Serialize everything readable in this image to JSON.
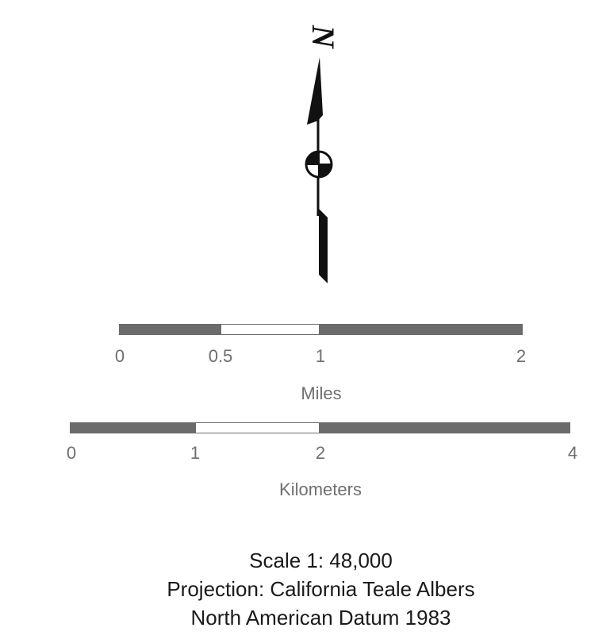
{
  "north_arrow": {
    "letter": "N",
    "icon": "north-arrow-icon"
  },
  "scale_miles": {
    "ticks": [
      "0",
      "0.5",
      "1",
      "2"
    ],
    "unit": "Miles"
  },
  "scale_km": {
    "ticks": [
      "0",
      "1",
      "2",
      "4"
    ],
    "unit": "Kilometers"
  },
  "info": {
    "scale": "Scale 1: 48,000",
    "projection": "Projection: California Teale Albers",
    "datum": "North American Datum 1983"
  },
  "colors": {
    "bar_dark": "#6b6b6b",
    "bar_light": "#ffffff",
    "label_gray": "#6f6f6f",
    "text_dark": "#1a1a1a",
    "arrow_black": "#111111"
  }
}
